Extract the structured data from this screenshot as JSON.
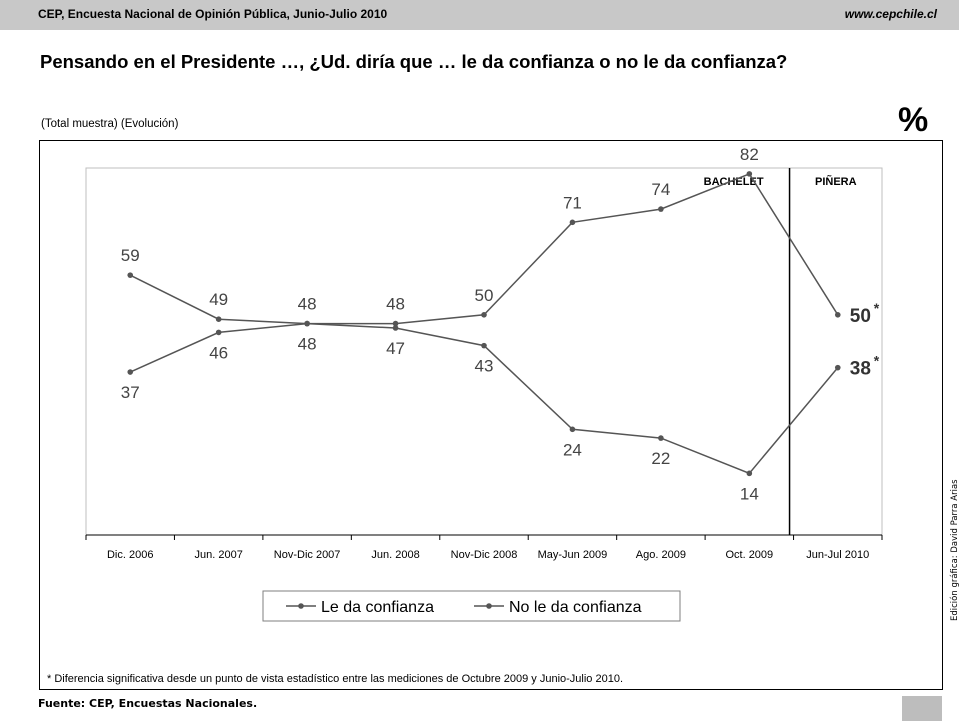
{
  "header": {
    "left": "CEP, Encuesta Nacional de Opinión Pública, Junio-Julio 2010",
    "right": "www.cepchile.cl"
  },
  "question": "Pensando en el Presidente …, ¿Ud. diría que … le da confianza o no le da confianza?",
  "subtitle": "(Total muestra) (Evolución)",
  "percent_symbol": "%",
  "footnote": "* Diferencia significativa desde un punto de vista estadístico entre las mediciones de Octubre 2009 y Junio-Julio 2010.",
  "source": "Fuente: CEP, Encuestas Nacionales.",
  "credit": "Edición gráfica: David Parra Arias",
  "colors": {
    "header_bg": "#c8c8c8",
    "line": "#555555",
    "divider": "#000000",
    "label": "#444444"
  },
  "chart_data": {
    "type": "line",
    "categories": [
      "Dic. 2006",
      "Jun. 2007",
      "Nov-Dic 2007",
      "Jun. 2008",
      "Nov-Dic 2008",
      "May-Jun 2009",
      "Ago. 2009",
      "Oct. 2009",
      "Jun-Jul 2010"
    ],
    "series": [
      {
        "name": "Le da confianza",
        "values": [
          59,
          49,
          48,
          48,
          50,
          71,
          74,
          82,
          50
        ],
        "labels": [
          "59",
          "49",
          "48",
          "48",
          "50",
          "71",
          "74",
          "82",
          "50*"
        ]
      },
      {
        "name": "No le da confianza",
        "values": [
          37,
          46,
          48,
          47,
          43,
          24,
          22,
          14,
          38
        ],
        "labels": [
          "37",
          "46",
          "48",
          "47",
          "43",
          "24",
          "22",
          "14",
          "38*"
        ]
      }
    ],
    "ylim": [
      0,
      100
    ],
    "periods": [
      {
        "label": "BACHELET",
        "from": 0,
        "to": 7
      },
      {
        "label": "PIÑERA",
        "from": 8,
        "to": 8
      }
    ],
    "grid": false,
    "legend": "bottom"
  }
}
